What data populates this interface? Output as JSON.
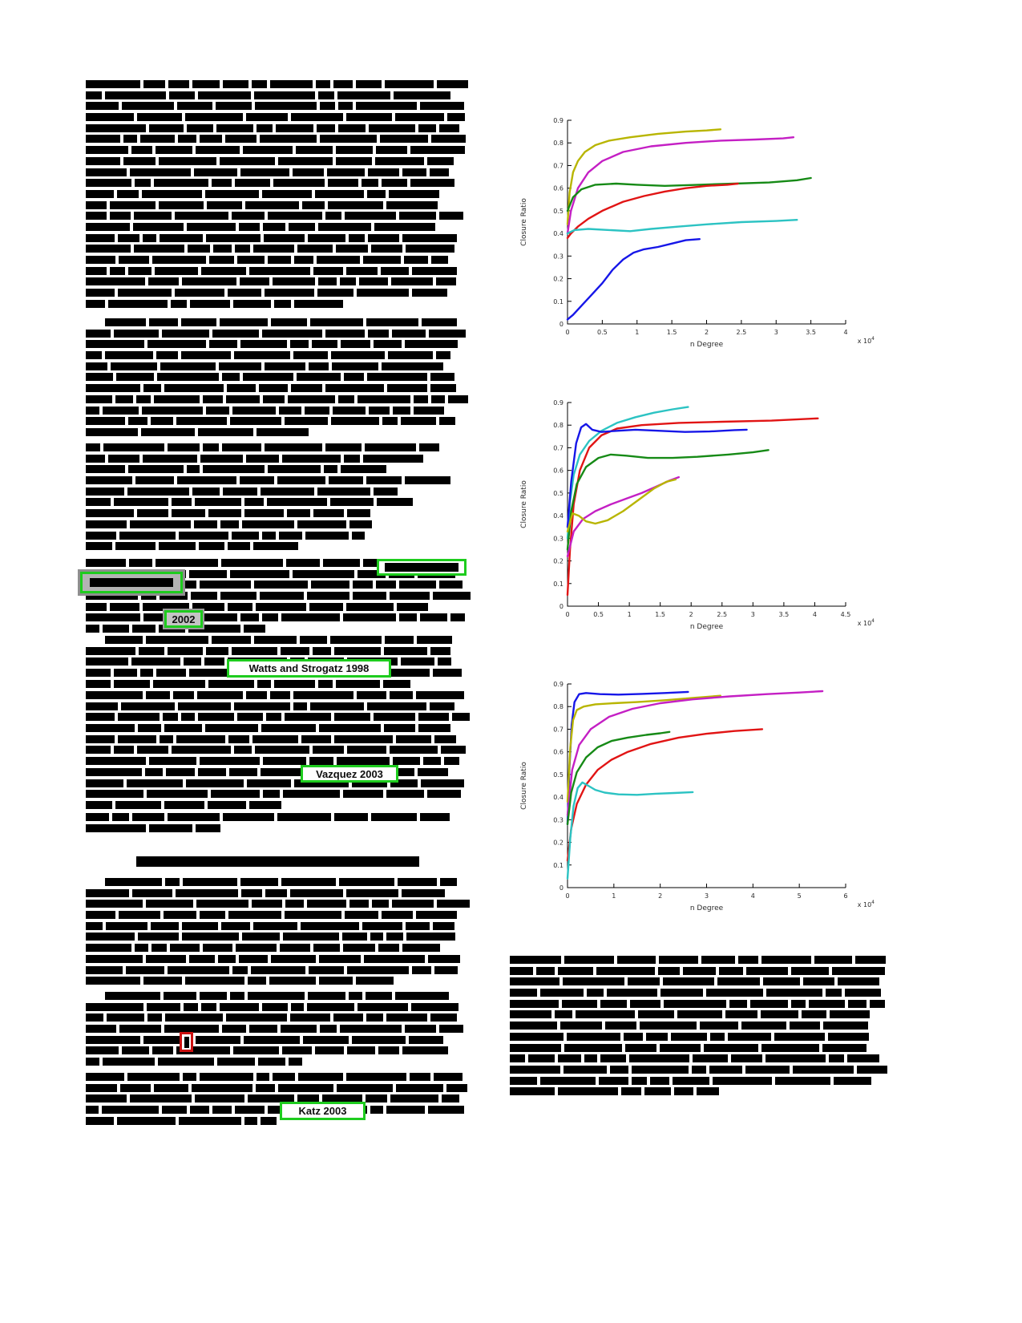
{
  "page": {
    "background": "#ffffff",
    "description": "Scanned journal paper page: left column of binarized (illegible) body text with highlighted citations, right column with three line plots of Closure Ratio vs n Degree and a closing paragraph"
  },
  "colors": {
    "highlight_green": "#1ecc1e",
    "highlight_red": "#cc1111",
    "text_black": "#000000"
  },
  "citations": {
    "year_2002": "2002",
    "watts_strogatz": "Watts and Strogatz 1998",
    "vazquez": "Vazquez 2003",
    "katz": "Katz 2003"
  },
  "chart_data": [
    {
      "type": "line",
      "title": "",
      "xlabel": "n Degree",
      "ylabel": "Closure Ratio",
      "x_scale_label": "x 10^4",
      "xlim": [
        0,
        4
      ],
      "ylim": [
        0,
        0.9
      ],
      "xticks": [
        0,
        0.5,
        1,
        1.5,
        2,
        2.5,
        3,
        3.5,
        4
      ],
      "yticks": [
        0,
        0.1,
        0.2,
        0.3,
        0.4,
        0.5,
        0.6,
        0.7,
        0.8,
        0.9
      ],
      "grid": false,
      "legend": "none",
      "series": [
        {
          "name": "dark-yellow",
          "color": "#b8b500",
          "points": [
            [
              0,
              0.44
            ],
            [
              0.03,
              0.58
            ],
            [
              0.08,
              0.67
            ],
            [
              0.15,
              0.72
            ],
            [
              0.25,
              0.76
            ],
            [
              0.4,
              0.79
            ],
            [
              0.6,
              0.81
            ],
            [
              0.9,
              0.825
            ],
            [
              1.3,
              0.84
            ],
            [
              1.7,
              0.85
            ],
            [
              2.0,
              0.855
            ],
            [
              2.2,
              0.86
            ]
          ]
        },
        {
          "name": "magenta",
          "color": "#c41fc4",
          "points": [
            [
              0,
              0.4
            ],
            [
              0.05,
              0.5
            ],
            [
              0.15,
              0.6
            ],
            [
              0.3,
              0.67
            ],
            [
              0.5,
              0.72
            ],
            [
              0.8,
              0.76
            ],
            [
              1.2,
              0.785
            ],
            [
              1.7,
              0.8
            ],
            [
              2.2,
              0.81
            ],
            [
              2.7,
              0.815
            ],
            [
              3.1,
              0.82
            ],
            [
              3.25,
              0.825
            ]
          ]
        },
        {
          "name": "green",
          "color": "#168a16",
          "points": [
            [
              0,
              0.5
            ],
            [
              0.08,
              0.56
            ],
            [
              0.2,
              0.595
            ],
            [
              0.4,
              0.615
            ],
            [
              0.7,
              0.62
            ],
            [
              1.0,
              0.615
            ],
            [
              1.4,
              0.61
            ],
            [
              1.9,
              0.615
            ],
            [
              2.4,
              0.62
            ],
            [
              2.9,
              0.625
            ],
            [
              3.3,
              0.635
            ],
            [
              3.5,
              0.645
            ]
          ]
        },
        {
          "name": "red",
          "color": "#e11414",
          "points": [
            [
              0,
              0.38
            ],
            [
              0.05,
              0.4
            ],
            [
              0.15,
              0.43
            ],
            [
              0.3,
              0.465
            ],
            [
              0.5,
              0.5
            ],
            [
              0.8,
              0.54
            ],
            [
              1.1,
              0.565
            ],
            [
              1.4,
              0.585
            ],
            [
              1.7,
              0.6
            ],
            [
              2.0,
              0.61
            ],
            [
              2.3,
              0.615
            ],
            [
              2.45,
              0.62
            ]
          ]
        },
        {
          "name": "cyan",
          "color": "#2cc3c3",
          "points": [
            [
              0,
              0.4
            ],
            [
              0.1,
              0.415
            ],
            [
              0.3,
              0.42
            ],
            [
              0.6,
              0.415
            ],
            [
              0.9,
              0.41
            ],
            [
              1.2,
              0.42
            ],
            [
              1.6,
              0.43
            ],
            [
              2.0,
              0.44
            ],
            [
              2.5,
              0.45
            ],
            [
              3.0,
              0.455
            ],
            [
              3.3,
              0.46
            ]
          ]
        },
        {
          "name": "blue",
          "color": "#1616e8",
          "points": [
            [
              0,
              0.02
            ],
            [
              0.08,
              0.04
            ],
            [
              0.2,
              0.08
            ],
            [
              0.35,
              0.13
            ],
            [
              0.5,
              0.18
            ],
            [
              0.65,
              0.24
            ],
            [
              0.8,
              0.285
            ],
            [
              0.95,
              0.315
            ],
            [
              1.1,
              0.33
            ],
            [
              1.3,
              0.34
            ],
            [
              1.5,
              0.355
            ],
            [
              1.7,
              0.37
            ],
            [
              1.9,
              0.375
            ]
          ]
        }
      ]
    },
    {
      "type": "line",
      "title": "",
      "xlabel": "n Degree",
      "ylabel": "Closure Ratio",
      "x_scale_label": "x 10^4",
      "xlim": [
        0,
        4.5
      ],
      "ylim": [
        0,
        0.9
      ],
      "xticks": [
        0,
        0.5,
        1,
        1.5,
        2,
        2.5,
        3,
        3.5,
        4,
        4.5
      ],
      "yticks": [
        0,
        0.1,
        0.2,
        0.3,
        0.4,
        0.5,
        0.6,
        0.7,
        0.8,
        0.9
      ],
      "grid": false,
      "legend": "none",
      "series": [
        {
          "name": "cyan",
          "color": "#2cc3c3",
          "points": [
            [
              0,
              0.3
            ],
            [
              0.04,
              0.46
            ],
            [
              0.1,
              0.58
            ],
            [
              0.2,
              0.67
            ],
            [
              0.35,
              0.73
            ],
            [
              0.55,
              0.775
            ],
            [
              0.8,
              0.81
            ],
            [
              1.1,
              0.835
            ],
            [
              1.4,
              0.855
            ],
            [
              1.7,
              0.87
            ],
            [
              1.95,
              0.88
            ]
          ]
        },
        {
          "name": "red",
          "color": "#e11414",
          "points": [
            [
              0,
              0.05
            ],
            [
              0.04,
              0.25
            ],
            [
              0.1,
              0.45
            ],
            [
              0.2,
              0.6
            ],
            [
              0.35,
              0.7
            ],
            [
              0.55,
              0.755
            ],
            [
              0.8,
              0.785
            ],
            [
              1.2,
              0.8
            ],
            [
              1.8,
              0.81
            ],
            [
              2.5,
              0.815
            ],
            [
              3.3,
              0.82
            ],
            [
              4.05,
              0.83
            ]
          ]
        },
        {
          "name": "blue",
          "color": "#1616e8",
          "points": [
            [
              0,
              0.35
            ],
            [
              0.06,
              0.55
            ],
            [
              0.14,
              0.72
            ],
            [
              0.22,
              0.79
            ],
            [
              0.3,
              0.805
            ],
            [
              0.4,
              0.78
            ],
            [
              0.55,
              0.77
            ],
            [
              0.8,
              0.775
            ],
            [
              1.1,
              0.78
            ],
            [
              1.5,
              0.775
            ],
            [
              1.9,
              0.77
            ],
            [
              2.3,
              0.772
            ],
            [
              2.7,
              0.778
            ],
            [
              2.9,
              0.78
            ]
          ]
        },
        {
          "name": "green",
          "color": "#168a16",
          "points": [
            [
              0,
              0.25
            ],
            [
              0.06,
              0.42
            ],
            [
              0.15,
              0.54
            ],
            [
              0.3,
              0.615
            ],
            [
              0.5,
              0.655
            ],
            [
              0.7,
              0.67
            ],
            [
              0.95,
              0.665
            ],
            [
              1.3,
              0.655
            ],
            [
              1.7,
              0.655
            ],
            [
              2.1,
              0.66
            ],
            [
              2.6,
              0.67
            ],
            [
              3.0,
              0.68
            ],
            [
              3.25,
              0.69
            ]
          ]
        },
        {
          "name": "magenta",
          "color": "#c41fc4",
          "points": [
            [
              0,
              0.22
            ],
            [
              0.1,
              0.33
            ],
            [
              0.25,
              0.385
            ],
            [
              0.45,
              0.42
            ],
            [
              0.7,
              0.45
            ],
            [
              0.95,
              0.475
            ],
            [
              1.2,
              0.5
            ],
            [
              1.45,
              0.53
            ],
            [
              1.65,
              0.555
            ],
            [
              1.8,
              0.57
            ]
          ]
        },
        {
          "name": "dark-yellow",
          "color": "#b8b500",
          "points": [
            [
              0,
              0.33
            ],
            [
              0.08,
              0.41
            ],
            [
              0.18,
              0.4
            ],
            [
              0.3,
              0.375
            ],
            [
              0.45,
              0.365
            ],
            [
              0.65,
              0.38
            ],
            [
              0.9,
              0.42
            ],
            [
              1.15,
              0.47
            ],
            [
              1.4,
              0.52
            ],
            [
              1.6,
              0.55
            ],
            [
              1.75,
              0.56
            ]
          ]
        }
      ]
    },
    {
      "type": "line",
      "title": "",
      "xlabel": "n Degree",
      "ylabel": "Closure Ratio",
      "x_scale_label": "x 10^4",
      "xlim": [
        0,
        6
      ],
      "ylim": [
        0,
        0.9
      ],
      "xticks": [
        0,
        1,
        2,
        3,
        4,
        5,
        6
      ],
      "yticks": [
        0,
        0.1,
        0.2,
        0.3,
        0.4,
        0.5,
        0.6,
        0.7,
        0.8,
        0.9
      ],
      "grid": false,
      "legend": "none",
      "series": [
        {
          "name": "blue",
          "color": "#1616e8",
          "points": [
            [
              0,
              0.28
            ],
            [
              0.04,
              0.52
            ],
            [
              0.09,
              0.72
            ],
            [
              0.15,
              0.82
            ],
            [
              0.25,
              0.855
            ],
            [
              0.4,
              0.86
            ],
            [
              0.7,
              0.855
            ],
            [
              1.1,
              0.853
            ],
            [
              1.6,
              0.856
            ],
            [
              2.1,
              0.86
            ],
            [
              2.6,
              0.865
            ]
          ]
        },
        {
          "name": "dark-yellow",
          "color": "#b8b500",
          "points": [
            [
              0,
              0.38
            ],
            [
              0.06,
              0.62
            ],
            [
              0.12,
              0.74
            ],
            [
              0.2,
              0.785
            ],
            [
              0.35,
              0.8
            ],
            [
              0.6,
              0.81
            ],
            [
              1.0,
              0.815
            ],
            [
              1.5,
              0.82
            ],
            [
              2.1,
              0.828
            ],
            [
              2.7,
              0.838
            ],
            [
              3.3,
              0.848
            ]
          ]
        },
        {
          "name": "magenta",
          "color": "#c41fc4",
          "points": [
            [
              0,
              0.32
            ],
            [
              0.1,
              0.52
            ],
            [
              0.25,
              0.63
            ],
            [
              0.5,
              0.7
            ],
            [
              0.9,
              0.755
            ],
            [
              1.4,
              0.79
            ],
            [
              2.0,
              0.815
            ],
            [
              2.7,
              0.832
            ],
            [
              3.5,
              0.845
            ],
            [
              4.3,
              0.855
            ],
            [
              5.0,
              0.862
            ],
            [
              5.5,
              0.868
            ]
          ]
        },
        {
          "name": "green",
          "color": "#168a16",
          "points": [
            [
              0,
              0.28
            ],
            [
              0.08,
              0.42
            ],
            [
              0.2,
              0.51
            ],
            [
              0.4,
              0.575
            ],
            [
              0.65,
              0.62
            ],
            [
              0.95,
              0.648
            ],
            [
              1.3,
              0.663
            ],
            [
              1.7,
              0.675
            ],
            [
              2.0,
              0.682
            ],
            [
              2.2,
              0.688
            ]
          ]
        },
        {
          "name": "red",
          "color": "#e11414",
          "points": [
            [
              0,
              0.12
            ],
            [
              0.08,
              0.26
            ],
            [
              0.2,
              0.37
            ],
            [
              0.4,
              0.455
            ],
            [
              0.65,
              0.52
            ],
            [
              0.95,
              0.565
            ],
            [
              1.3,
              0.6
            ],
            [
              1.8,
              0.635
            ],
            [
              2.4,
              0.663
            ],
            [
              3.0,
              0.68
            ],
            [
              3.6,
              0.692
            ],
            [
              4.2,
              0.7
            ]
          ]
        },
        {
          "name": "cyan",
          "color": "#2cc3c3",
          "points": [
            [
              0,
              0.04
            ],
            [
              0.06,
              0.22
            ],
            [
              0.13,
              0.36
            ],
            [
              0.22,
              0.44
            ],
            [
              0.32,
              0.465
            ],
            [
              0.45,
              0.45
            ],
            [
              0.6,
              0.432
            ],
            [
              0.8,
              0.42
            ],
            [
              1.1,
              0.412
            ],
            [
              1.5,
              0.41
            ],
            [
              1.9,
              0.415
            ],
            [
              2.3,
              0.418
            ],
            [
              2.7,
              0.422
            ]
          ]
        }
      ]
    }
  ]
}
